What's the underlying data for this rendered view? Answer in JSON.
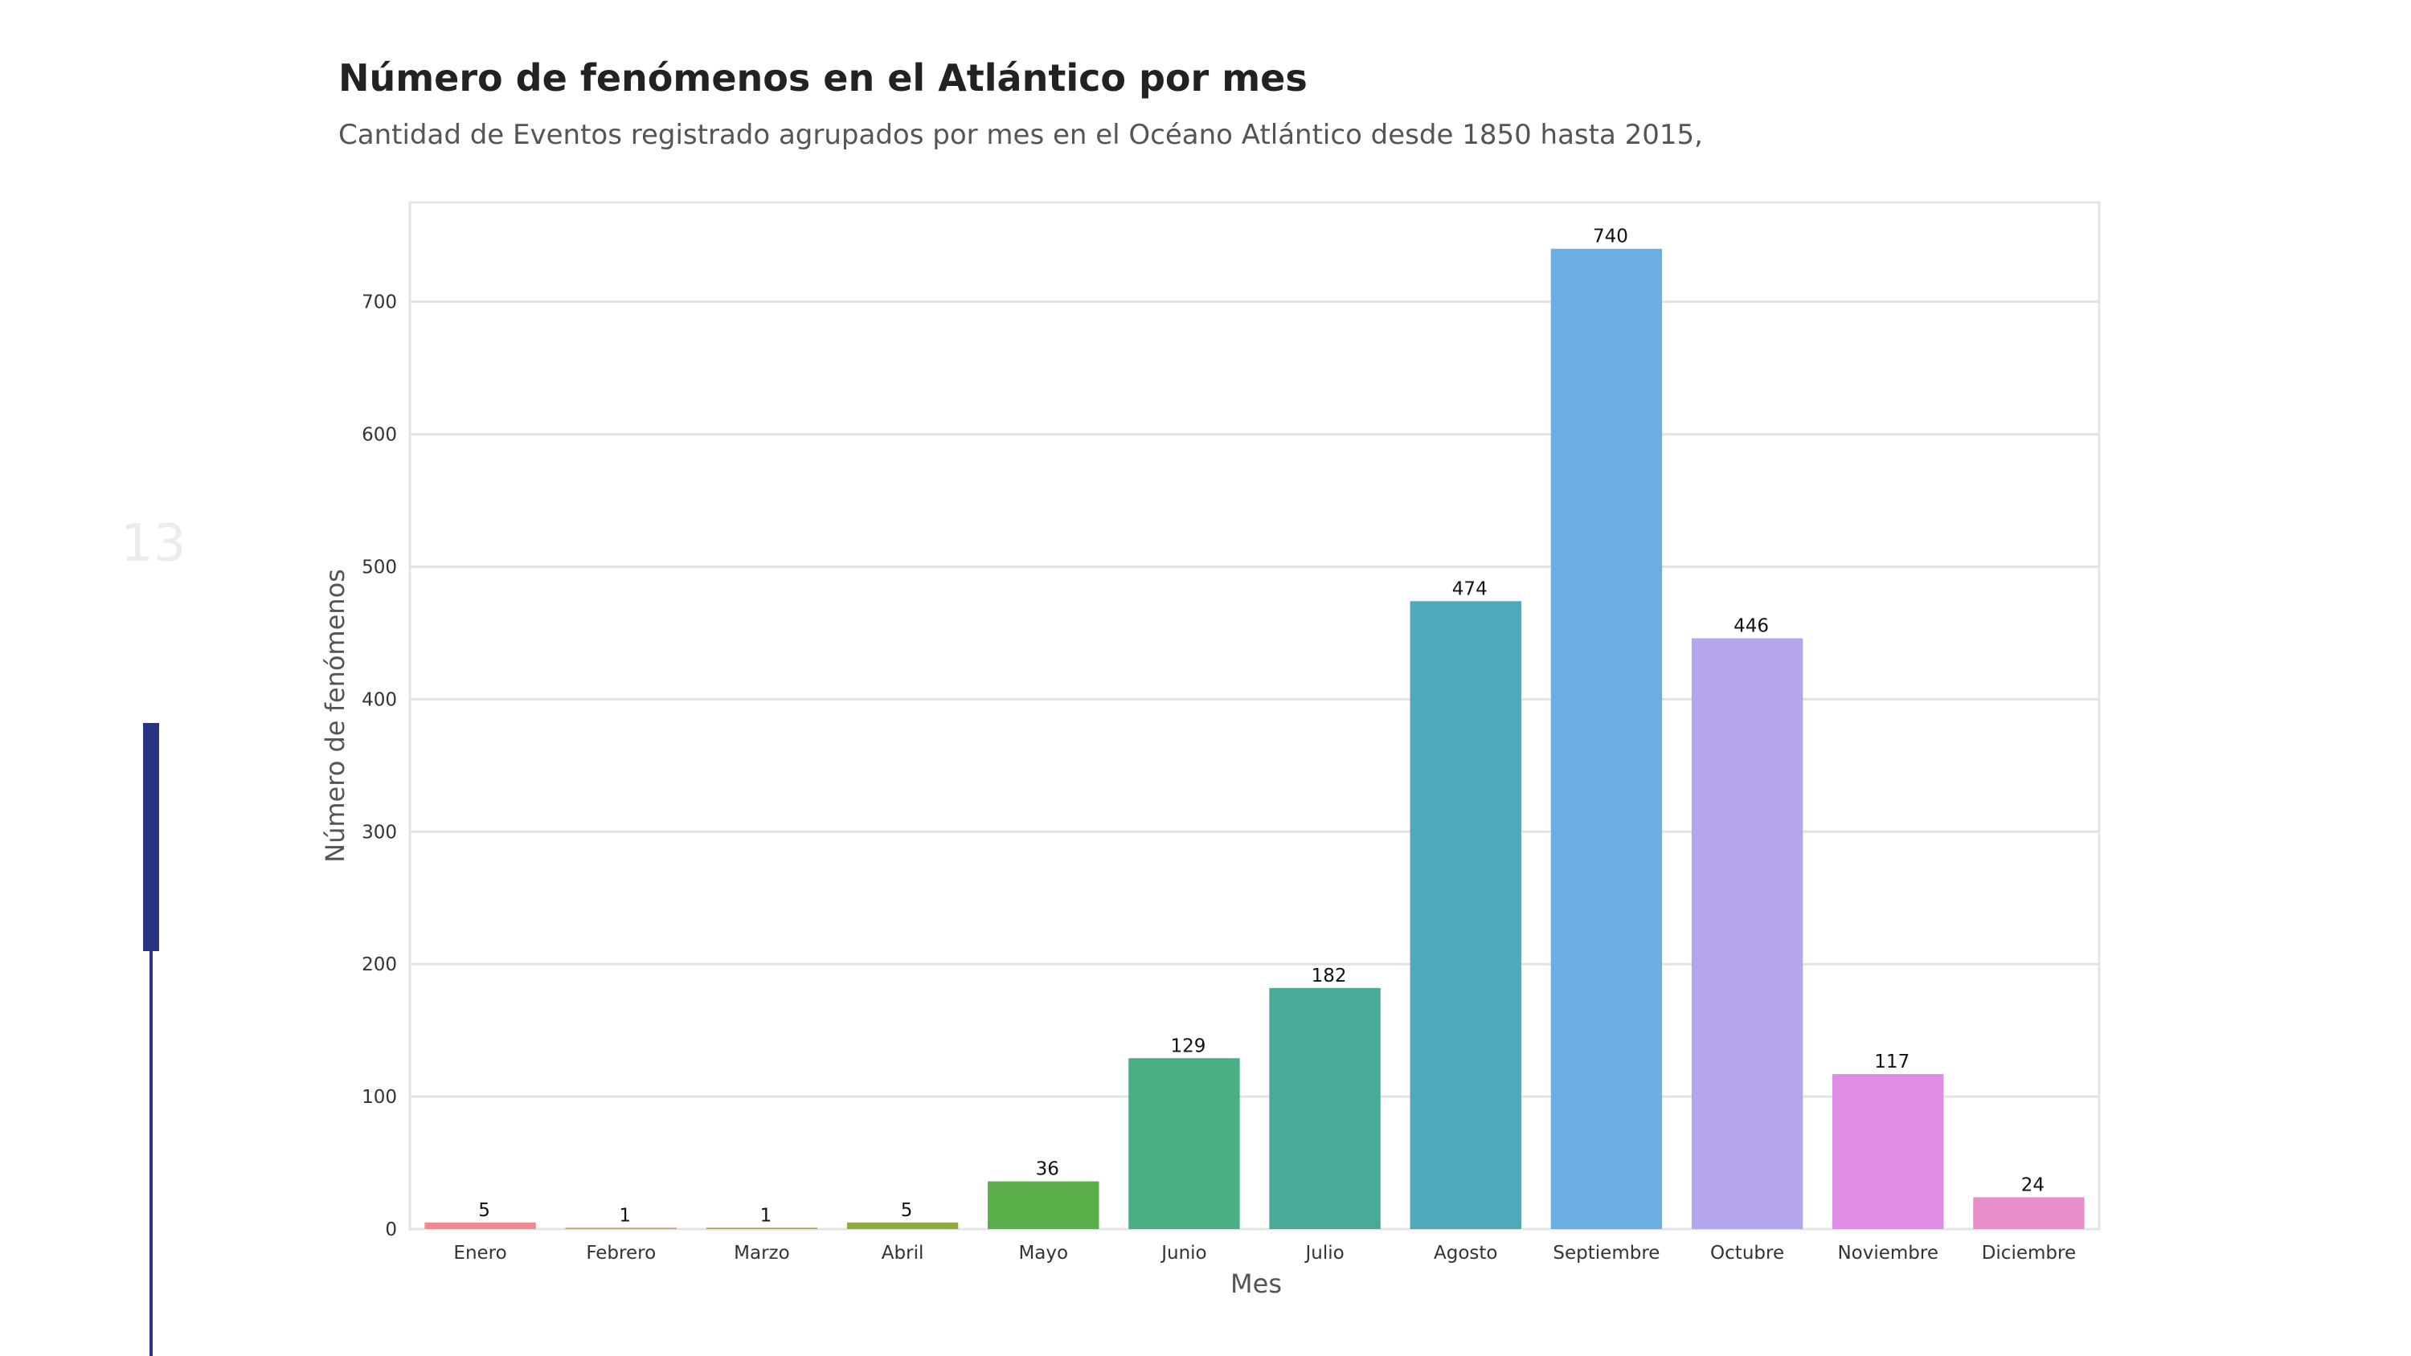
{
  "slide": {
    "number": "13",
    "accent_color": "#283583"
  },
  "chart_data": {
    "type": "bar",
    "title": "Número de fenómenos en el Atlántico por mes",
    "subtitle": "Cantidad de Eventos registrado agrupados por mes en el Océano Atlántico desde 1850 hasta 2015,",
    "xlabel": "Mes",
    "ylabel": "Número de fenómenos",
    "categories": [
      "Enero",
      "Febrero",
      "Marzo",
      "Abril",
      "Mayo",
      "Junio",
      "Julio",
      "Agosto",
      "Septiembre",
      "Octubre",
      "Noviembre",
      "Diciembre"
    ],
    "values": [
      5,
      1,
      1,
      5,
      36,
      129,
      182,
      474,
      740,
      446,
      117,
      24
    ],
    "colors": [
      "#f08a8c",
      "#d59a5a",
      "#b3a233",
      "#8fad3e",
      "#5aae47",
      "#4aae85",
      "#4aaa9a",
      "#4eaabb",
      "#6aaee2",
      "#b4a5ec",
      "#de8ce6",
      "#e98ec8"
    ],
    "ylim": [
      0,
      775
    ],
    "yticks": [
      0,
      100,
      200,
      300,
      400,
      500,
      600,
      700
    ],
    "grid": true,
    "legend": "none"
  }
}
